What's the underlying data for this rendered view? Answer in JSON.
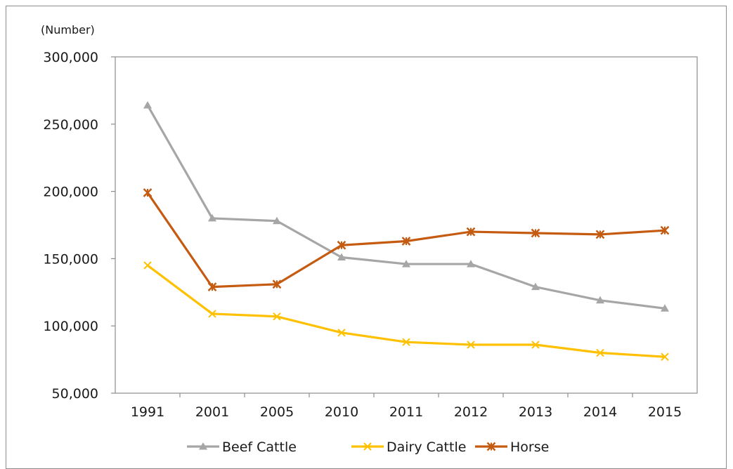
{
  "chart_data": {
    "type": "line",
    "title": "",
    "xlabel": "",
    "ylabel": "(Number)",
    "categories": [
      "1991",
      "2001",
      "2005",
      "2010",
      "2011",
      "2012",
      "2013",
      "2014",
      "2015"
    ],
    "ylim": [
      50000,
      300000
    ],
    "yticks": [
      50000,
      100000,
      150000,
      200000,
      250000,
      300000
    ],
    "ytick_labels": [
      "50,000",
      "100,000",
      "150,000",
      "200,000",
      "250,000",
      "300,000"
    ],
    "grid": false,
    "legend_position": "bottom",
    "series": [
      {
        "name": "Beef Cattle",
        "color": "#a6a6a6",
        "marker": "triangle",
        "values": [
          264000,
          180000,
          178000,
          151000,
          146000,
          146000,
          129000,
          119000,
          113000
        ]
      },
      {
        "name": "Dairy Cattle",
        "color": "#ffc000",
        "marker": "x",
        "values": [
          145000,
          109000,
          107000,
          95000,
          88000,
          86000,
          86000,
          80000,
          77000
        ]
      },
      {
        "name": "Horse",
        "color": "#c55a11",
        "marker": "star",
        "values": [
          199000,
          129000,
          131000,
          160000,
          163000,
          170000,
          169000,
          168000,
          171000
        ]
      }
    ]
  }
}
